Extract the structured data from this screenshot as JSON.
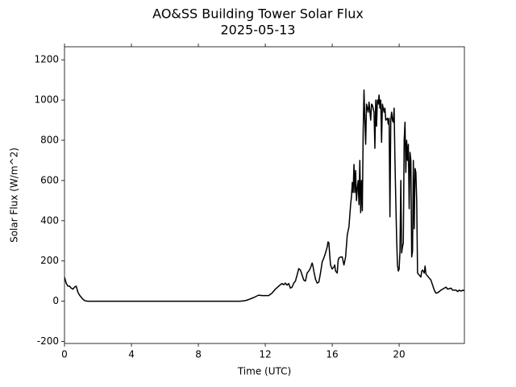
{
  "chart_data": {
    "type": "line",
    "title": "AO&SS Building Tower Solar Flux",
    "subtitle": "2025-05-13",
    "x_label": "Time (UTC)",
    "y_label": "Solar Flux (W/m^2)",
    "x": [
      0,
      0.1,
      0.2,
      0.3,
      0.4,
      0.5,
      0.6,
      0.7,
      0.8,
      0.9,
      1.0,
      1.1,
      1.2,
      1.4,
      10.5,
      10.8,
      11,
      11.3,
      11.6,
      11.8,
      12.2,
      12.4,
      12.6,
      12.8,
      13,
      13.1,
      13.2,
      13.3,
      13.4,
      13.5,
      13.6,
      13.7,
      13.8,
      13.9,
      14,
      14.1,
      14.2,
      14.3,
      14.4,
      14.5,
      14.6,
      14.7,
      14.8,
      14.85,
      14.9,
      15,
      15.1,
      15.2,
      15.3,
      15.4,
      15.5,
      15.6,
      15.7,
      15.75,
      15.8,
      15.85,
      15.9,
      16,
      16.1,
      16.15,
      16.2,
      16.3,
      16.35,
      16.4,
      16.5,
      16.6,
      16.7,
      16.8,
      16.9,
      17,
      17.1,
      17.15,
      17.2,
      17.25,
      17.3,
      17.35,
      17.4,
      17.45,
      17.5,
      17.55,
      17.6,
      17.65,
      17.7,
      17.75,
      17.8,
      17.85,
      17.9,
      17.95,
      18,
      18.05,
      18.1,
      18.15,
      18.2,
      18.3,
      18.35,
      18.4,
      18.5,
      18.55,
      18.6,
      18.65,
      18.7,
      18.75,
      18.8,
      18.85,
      18.9,
      18.95,
      19,
      19.1,
      19.15,
      19.2,
      19.3,
      19.35,
      19.4,
      19.45,
      19.5,
      19.55,
      19.6,
      19.65,
      19.7,
      19.75,
      19.8,
      19.85,
      19.9,
      19.95,
      20,
      20.05,
      20.1,
      20.15,
      20.2,
      20.25,
      20.3,
      20.35,
      20.4,
      20.45,
      20.5,
      20.55,
      20.6,
      20.65,
      20.7,
      20.75,
      20.8,
      20.85,
      20.9,
      20.95,
      21,
      21.05,
      21.1,
      21.2,
      21.3,
      21.35,
      21.4,
      21.5,
      21.55,
      21.6,
      21.7,
      21.8,
      21.9,
      22,
      22.1,
      22.2,
      22.3,
      22.5,
      22.8,
      22.9,
      23.1,
      23.2,
      23.4,
      23.5,
      23.6,
      23.7,
      23.8,
      23.9
    ],
    "values": [
      120,
      90,
      75,
      75,
      65,
      60,
      70,
      75,
      45,
      30,
      20,
      10,
      3,
      0,
      0,
      3,
      8,
      18,
      30,
      28,
      28,
      40,
      60,
      75,
      88,
      82,
      90,
      80,
      88,
      65,
      70,
      90,
      100,
      130,
      162,
      155,
      130,
      105,
      100,
      140,
      150,
      165,
      190,
      175,
      150,
      110,
      90,
      95,
      140,
      195,
      215,
      240,
      270,
      295,
      290,
      230,
      180,
      160,
      170,
      180,
      150,
      140,
      200,
      215,
      220,
      220,
      180,
      220,
      330,
      370,
      480,
      520,
      590,
      540,
      680,
      540,
      650,
      500,
      560,
      600,
      480,
      700,
      440,
      600,
      450,
      840,
      1050,
      900,
      780,
      980,
      960,
      940,
      990,
      900,
      980,
      975,
      940,
      760,
      1000,
      870,
      1000,
      980,
      1025,
      960,
      1000,
      790,
      980,
      940,
      960,
      900,
      910,
      880,
      910,
      420,
      900,
      940,
      900,
      890,
      960,
      700,
      500,
      310,
      180,
      150,
      160,
      250,
      600,
      240,
      270,
      290,
      800,
      890,
      640,
      800,
      700,
      780,
      460,
      740,
      700,
      220,
      250,
      700,
      360,
      660,
      640,
      500,
      140,
      130,
      120,
      150,
      155,
      140,
      175,
      135,
      125,
      115,
      105,
      80,
      55,
      40,
      42,
      55,
      70,
      60,
      65,
      55,
      55,
      48,
      55,
      50,
      55,
      52
    ],
    "color": "#000000",
    "xlim": [
      0,
      23.9
    ],
    "xticks": [
      0,
      4,
      8,
      12,
      16,
      20
    ],
    "ylim": [
      -210,
      1265
    ],
    "yticks": [
      -200,
      0,
      200,
      400,
      600,
      800,
      1000,
      1200
    ],
    "grid": false
  }
}
